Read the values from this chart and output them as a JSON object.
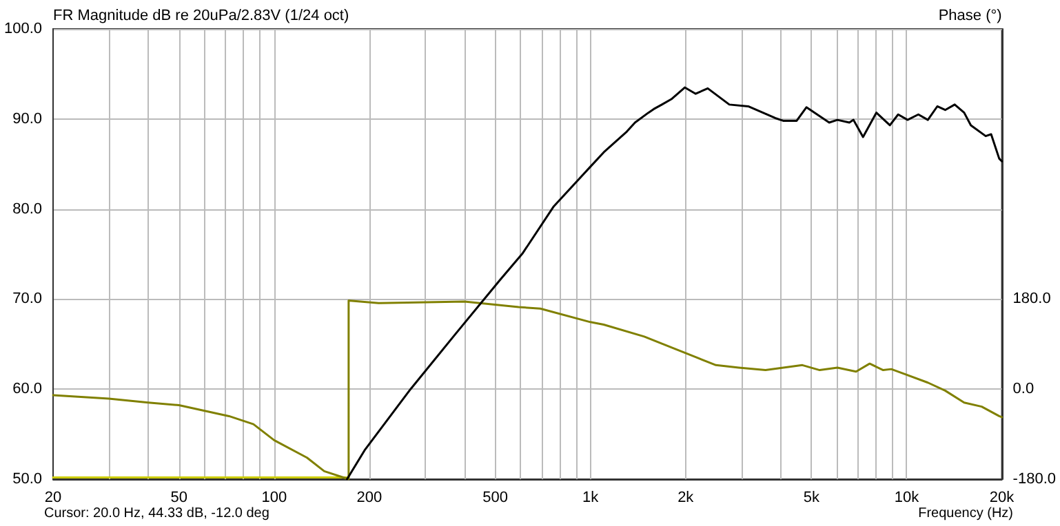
{
  "chart_data": {
    "type": "line",
    "ylabel": "FR Magnitude dB re 20uPa/2.83V (1/24 oct)",
    "y2label": "Phase (°)",
    "xlabel": "Frequency (Hz)",
    "annotations": [
      "Cursor: 20.0 Hz, 44.33 dB, -12.0 deg"
    ],
    "log": "x",
    "grid": true,
    "legend": false,
    "marker": "none",
    "line_style": "solid",
    "xlim": [
      20,
      20000
    ],
    "xticks": [
      20,
      {
        "value": 30,
        "label": null
      },
      {
        "value": 40,
        "label": null
      },
      50,
      {
        "value": 60,
        "label": null
      },
      {
        "value": 70,
        "label": null
      },
      {
        "value": 80,
        "label": null
      },
      {
        "value": 90,
        "label": null
      },
      100,
      200,
      {
        "value": 300,
        "label": null
      },
      {
        "value": 400,
        "label": null
      },
      500,
      {
        "value": 600,
        "label": null
      },
      {
        "value": 700,
        "label": null
      },
      {
        "value": 800,
        "label": null
      },
      {
        "value": 900,
        "label": null
      },
      {
        "value": 1000,
        "label": "1k"
      },
      {
        "value": 2000,
        "label": "2k"
      },
      {
        "value": 3000,
        "label": null
      },
      {
        "value": 4000,
        "label": null
      },
      {
        "value": 5000,
        "label": "5k"
      },
      {
        "value": 6000,
        "label": null
      },
      {
        "value": 7000,
        "label": null
      },
      {
        "value": 8000,
        "label": null
      },
      {
        "value": 9000,
        "label": null
      },
      {
        "value": 10000,
        "label": "10k"
      },
      {
        "value": 20000,
        "label": "20k"
      }
    ],
    "ylim": [
      50,
      100
    ],
    "yticks": [
      {
        "value": 50,
        "label": "50.0"
      },
      {
        "value": 60,
        "label": "60.0"
      },
      {
        "value": 70,
        "label": "70.0"
      },
      {
        "value": 80,
        "label": "80.0"
      },
      {
        "value": 90,
        "label": "90.0"
      },
      {
        "value": 100,
        "label": "100.0"
      }
    ],
    "y2lim": [
      -180,
      720
    ],
    "y2ticks": [
      {
        "value": -180,
        "label": "-180.0"
      },
      {
        "value": 0,
        "label": "0.0"
      },
      {
        "value": 180,
        "label": "180.0"
      }
    ],
    "series": [
      {
        "color": "#cccc00",
        "x": [
          20,
          172
        ],
        "values": [
          50.2,
          50.2
        ]
      },
      {
        "color": "#808000",
        "axis": "y2",
        "x": [
          20,
          30,
          40,
          50,
          72,
          86,
          100,
          127,
          144,
          172,
          172,
          214,
          400,
          593,
          695,
          1000,
          1102,
          1480,
          1683,
          2152,
          2494,
          2946,
          3580,
          4680,
          5310,
          6040,
          6920,
          7640,
          8430,
          8940,
          9870,
          11670,
          13240,
          15200,
          17270,
          19620,
          20000
        ],
        "values": [
          -12,
          -19,
          -27,
          -32,
          -54,
          -70,
          -102,
          -137,
          -164,
          -180,
          177,
          172,
          175,
          164,
          161,
          134,
          129,
          105,
          91,
          64,
          48,
          43,
          38,
          48,
          38,
          43,
          35,
          51,
          38,
          40,
          30,
          13,
          -3,
          -27,
          -35,
          -54,
          -56
        ]
      },
      {
        "color": "#000000",
        "x": [
          170,
          194,
          270,
          374,
          517,
          611,
          766,
          1000,
          1102,
          1304,
          1384,
          1526,
          1586,
          1683,
          1803,
          1988,
          2152,
          2350,
          2750,
          3155,
          3840,
          4070,
          4490,
          4820,
          5690,
          6040,
          6590,
          6790,
          7280,
          8020,
          8850,
          9400,
          10070,
          10890,
          11670,
          12500,
          13240,
          14190,
          15200,
          15960,
          17780,
          18500,
          19620,
          20000
        ],
        "values": [
          50,
          53.3,
          60,
          66.1,
          72.1,
          75.1,
          80.3,
          84.7,
          86.3,
          88.6,
          89.6,
          90.7,
          91.1,
          91.6,
          92.2,
          93.5,
          92.8,
          93.4,
          91.6,
          91.4,
          90.1,
          89.8,
          89.8,
          91.3,
          89.6,
          89.9,
          89.6,
          89.9,
          88,
          90.7,
          89.3,
          90.5,
          89.9,
          90.5,
          89.9,
          91.4,
          91,
          91.6,
          90.7,
          89.3,
          88.1,
          88.3,
          85.6,
          85.3
        ]
      }
    ]
  }
}
